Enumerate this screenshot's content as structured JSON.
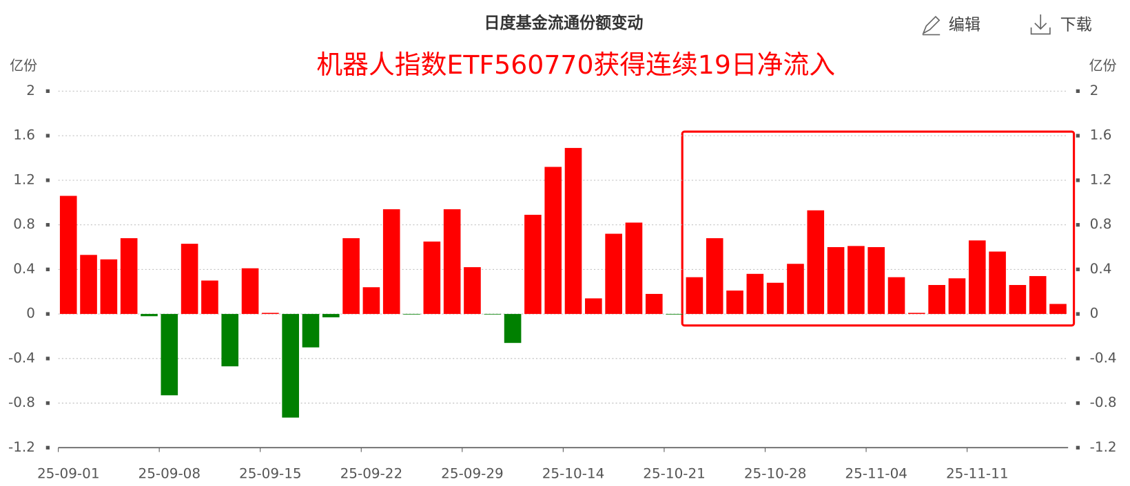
{
  "toolbar": {
    "edit": "编辑",
    "download": "下载"
  },
  "chart_data": {
    "type": "bar",
    "title": "日度基金流通份额变动",
    "annotation": "机器人指数ETF560770获得连续19日净流入",
    "y_label": "亿份",
    "y2_label": "亿份",
    "categories": [
      "25-09-01",
      null,
      null,
      null,
      null,
      "25-09-08",
      null,
      null,
      null,
      null,
      "25-09-15",
      null,
      null,
      null,
      null,
      "25-09-22",
      null,
      null,
      null,
      null,
      "25-09-29",
      null,
      null,
      null,
      null,
      "25-10-14",
      null,
      null,
      null,
      null,
      "25-10-21",
      null,
      null,
      null,
      null,
      "25-10-28",
      null,
      null,
      null,
      null,
      "25-11-04",
      null,
      null,
      null,
      null,
      "25-11-11",
      null,
      null,
      null,
      null
    ],
    "values": [
      1.06,
      0.53,
      0.49,
      0.68,
      -0.02,
      -0.73,
      0.63,
      0.3,
      -0.47,
      0.41,
      0.01,
      -0.93,
      -0.3,
      -0.03,
      0.68,
      0.24,
      0.94,
      -0.005,
      0.65,
      0.94,
      0.42,
      -0.005,
      -0.26,
      0.89,
      1.32,
      1.49,
      0.14,
      0.72,
      0.82,
      0.18,
      -0.005,
      0.33,
      0.68,
      0.21,
      0.36,
      0.28,
      0.45,
      0.93,
      0.6,
      0.61,
      0.6,
      0.33,
      0.01,
      0.26,
      0.32,
      0.66,
      0.56,
      0.26,
      0.34,
      0.09
    ],
    "positive_color": "#ff0000",
    "negative_color": "#008000",
    "annotation_color": "#ff0000",
    "ylim": [
      -1.2,
      2
    ],
    "yticks": [
      -1.2,
      -0.8,
      -0.4,
      0,
      0.4,
      0.8,
      1.2,
      1.6,
      2
    ],
    "y2lim": [
      -1.2,
      2
    ],
    "y2ticks": [
      -1.2,
      -0.8,
      -0.4,
      0,
      0.4,
      0.8,
      1.2,
      1.6,
      2
    ],
    "grid": true
  }
}
